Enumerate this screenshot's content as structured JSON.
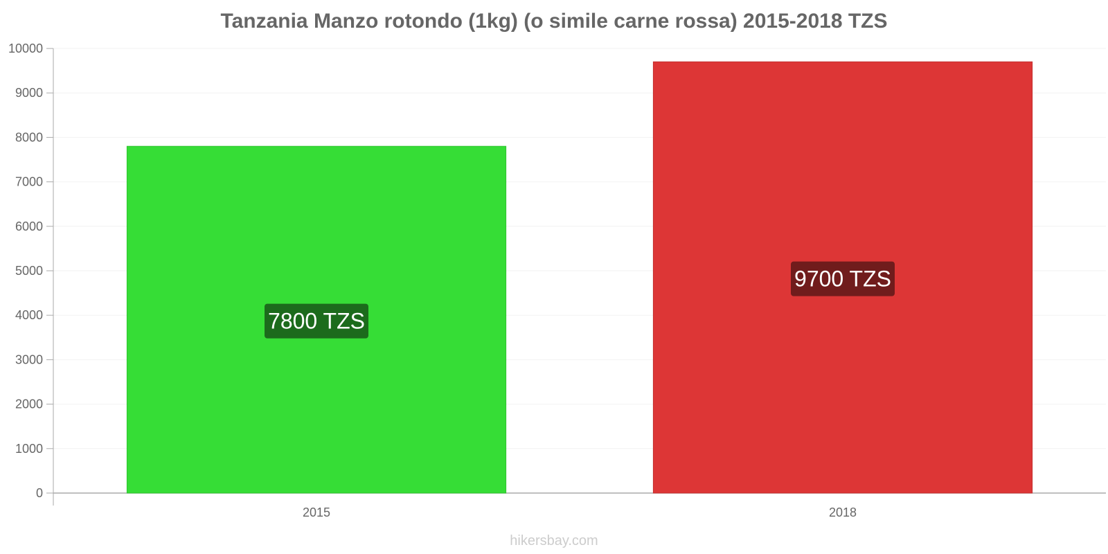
{
  "chart_data": {
    "type": "bar",
    "title": "Tanzania Manzo rotondo (1kg) (o simile carne rossa) 2015-2018 TZS",
    "categories": [
      "2015",
      "2018"
    ],
    "values": [
      7800,
      9700
    ],
    "data_labels": [
      "7800 TZS",
      "9700 TZS"
    ],
    "bar_colors": [
      "#36dd36",
      "#dd3636"
    ],
    "label_bg_colors": [
      "#1c6b1c",
      "#701c1c"
    ],
    "xlabel": "",
    "ylabel": "",
    "ylim": [
      0,
      10000
    ],
    "yticks": [
      0,
      1000,
      2000,
      3000,
      4000,
      5000,
      6000,
      7000,
      8000,
      9000,
      10000
    ],
    "grid": true,
    "legend": "none"
  },
  "watermark": "hikersbay.com"
}
